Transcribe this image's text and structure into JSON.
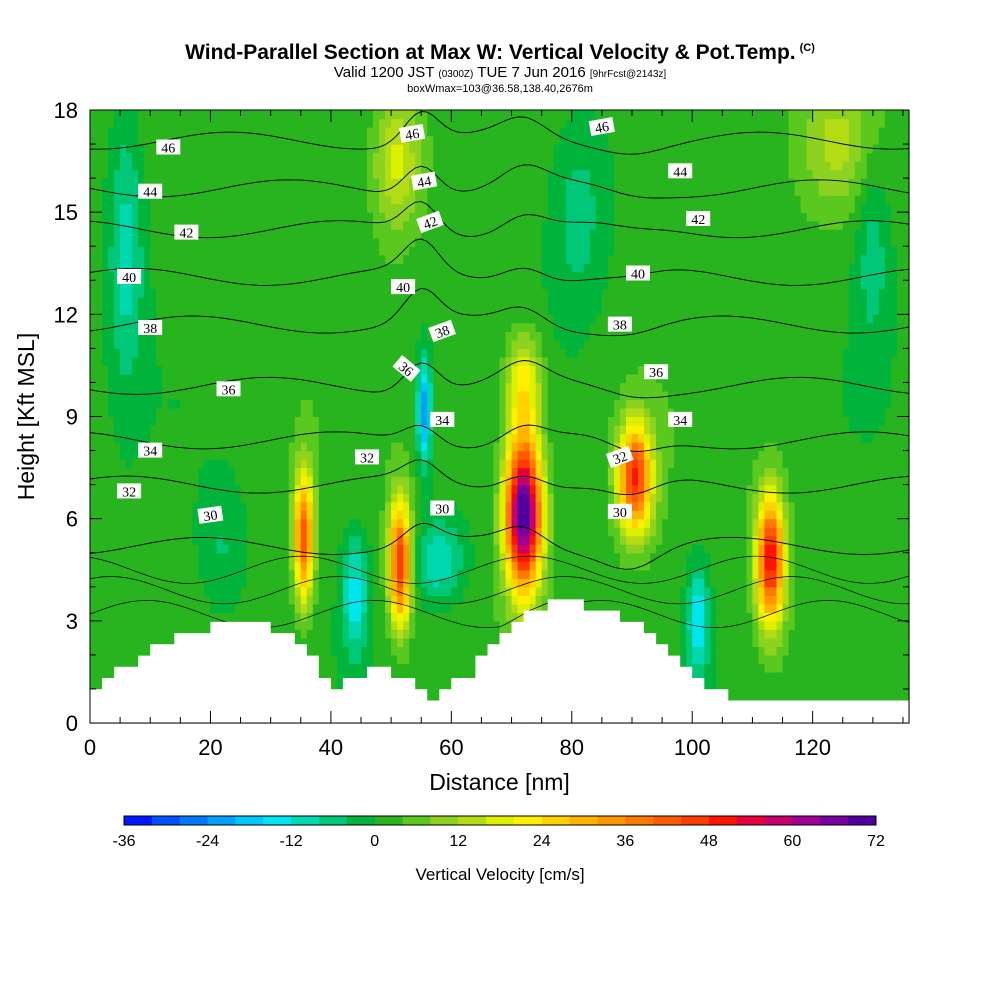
{
  "title_line1": "Wind-Parallel Section at Max W: Vertical Velocity & Pot.Temp.",
  "title_line1_tag": "(C)",
  "title_line2_a": "Valid 1200 JST",
  "title_line2_b": "(0300Z)",
  "title_line2_c": "TUE 7 Jun 2016",
  "title_line2_d": "[9hrFcst@2143z]",
  "title_line3": "boxWmax=103@36.58,138.40,2676m",
  "chart_data": {
    "type": "heatmap",
    "xlabel": "Distance [nm]",
    "ylabel": "Height [Kft MSL]",
    "xlim": [
      0,
      136
    ],
    "ylim": [
      0,
      18
    ],
    "x_ticks": [
      "0",
      "20",
      "40",
      "60",
      "80",
      "100",
      "120"
    ],
    "y_ticks": [
      "0",
      "3",
      "6",
      "9",
      "12",
      "15",
      "18"
    ],
    "colorbar": {
      "title": "Vertical Velocity [cm/s]",
      "ticks": [
        "-36",
        "-24",
        "-12",
        "0",
        "12",
        "24",
        "36",
        "48",
        "60",
        "72"
      ],
      "range": [
        -36,
        72
      ],
      "step": 4,
      "colors": [
        "#0018ff",
        "#0050ff",
        "#0078ff",
        "#00a0ff",
        "#00c8ff",
        "#00e6f0",
        "#00d8b0",
        "#00c878",
        "#00b43c",
        "#28b41e",
        "#5ac81e",
        "#8cd21e",
        "#b4dc14",
        "#dcf000",
        "#fff000",
        "#ffd200",
        "#ffb400",
        "#ff9600",
        "#ff7800",
        "#ff5a00",
        "#ff3c00",
        "#ff1400",
        "#e6003c",
        "#c8006e",
        "#a00096",
        "#7800a0",
        "#5000a0"
      ]
    },
    "updrafts": [
      {
        "x": 35.5,
        "y": 5.5,
        "peak": 40,
        "sx": 1.6,
        "sy": 1.9
      },
      {
        "x": 51.5,
        "y": 4.7,
        "peak": 46,
        "sx": 1.8,
        "sy": 1.8
      },
      {
        "x": 72,
        "y": 6.2,
        "peak": 72,
        "sx": 3.0,
        "sy": 2.2
      },
      {
        "x": 90.5,
        "y": 7.2,
        "peak": 46,
        "sx": 2.8,
        "sy": 1.6
      },
      {
        "x": 113,
        "y": 4.8,
        "peak": 50,
        "sx": 2.3,
        "sy": 1.9
      },
      {
        "x": 72,
        "y": 10.0,
        "peak": 20,
        "sx": 3.0,
        "sy": 1.4
      },
      {
        "x": 51,
        "y": 16.5,
        "peak": 16,
        "sx": 4.0,
        "sy": 2.0
      },
      {
        "x": 124,
        "y": 17.0,
        "peak": 10,
        "sx": 6.0,
        "sy": 2.0
      }
    ],
    "downdrafts": [
      {
        "x": 44,
        "y": 3.8,
        "peak": -16,
        "sx": 2.2,
        "sy": 1.8
      },
      {
        "x": 58,
        "y": 4.8,
        "peak": -14,
        "sx": 4.0,
        "sy": 1.2
      },
      {
        "x": 55.5,
        "y": 9.2,
        "peak": -24,
        "sx": 1.2,
        "sy": 1.6
      },
      {
        "x": 101,
        "y": 3.0,
        "peak": -18,
        "sx": 1.8,
        "sy": 1.6
      },
      {
        "x": 6,
        "y": 14.0,
        "peak": -12,
        "sx": 3.0,
        "sy": 4.0
      },
      {
        "x": 81,
        "y": 15.0,
        "peak": -8,
        "sx": 5.0,
        "sy": 3.0
      },
      {
        "x": 22,
        "y": 5.0,
        "peak": -6,
        "sx": 4.0,
        "sy": 2.0
      },
      {
        "x": 130,
        "y": 14,
        "peak": -8,
        "sx": 3.0,
        "sy": 3.0
      }
    ],
    "terrain": [
      {
        "x": 0,
        "h": 1.0
      },
      {
        "x": 4,
        "h": 1.6
      },
      {
        "x": 8,
        "h": 2.0
      },
      {
        "x": 11,
        "h": 2.3
      },
      {
        "x": 14,
        "h": 2.6
      },
      {
        "x": 20,
        "h": 2.9
      },
      {
        "x": 27,
        "h": 2.9
      },
      {
        "x": 33,
        "h": 2.6
      },
      {
        "x": 36,
        "h": 2.0
      },
      {
        "x": 39,
        "h": 1.0
      },
      {
        "x": 46,
        "h": 1.6
      },
      {
        "x": 52,
        "h": 1.4
      },
      {
        "x": 55,
        "h": 0.7
      },
      {
        "x": 62,
        "h": 1.4
      },
      {
        "x": 65,
        "h": 2.3
      },
      {
        "x": 69,
        "h": 2.9
      },
      {
        "x": 73,
        "h": 3.3
      },
      {
        "x": 77,
        "h": 3.6
      },
      {
        "x": 86,
        "h": 3.3
      },
      {
        "x": 92,
        "h": 2.6
      },
      {
        "x": 98,
        "h": 1.6
      },
      {
        "x": 103,
        "h": 1.0
      },
      {
        "x": 106,
        "h": 0.7
      },
      {
        "x": 136,
        "h": 0.7
      }
    ],
    "theta_contours": [
      {
        "value": "30",
        "base": 5.2
      },
      {
        "value": "32",
        "base": 7.0
      },
      {
        "value": "34",
        "base": 8.3
      },
      {
        "value": "36",
        "base": 9.9
      },
      {
        "value": "38",
        "base": 11.7
      },
      {
        "value": "40",
        "base": 13.1
      },
      {
        "value": "42",
        "base": 14.5
      },
      {
        "value": "44",
        "base": 15.7
      },
      {
        "value": "46",
        "base": 17.1
      }
    ],
    "contour_labels": [
      {
        "text": "46",
        "x": 13,
        "y": 16.9,
        "rot": 0
      },
      {
        "text": "44",
        "x": 10,
        "y": 15.6,
        "rot": 0
      },
      {
        "text": "42",
        "x": 16,
        "y": 14.4,
        "rot": 0
      },
      {
        "text": "40",
        "x": 6.5,
        "y": 13.1,
        "rot": 0
      },
      {
        "text": "38",
        "x": 10,
        "y": 11.6,
        "rot": 0
      },
      {
        "text": "36",
        "x": 23,
        "y": 9.8,
        "rot": 0
      },
      {
        "text": "34",
        "x": 10,
        "y": 8.0,
        "rot": 0
      },
      {
        "text": "32",
        "x": 6.5,
        "y": 6.8,
        "rot": 0
      },
      {
        "text": "30",
        "x": 20,
        "y": 6.1,
        "rot": -8
      },
      {
        "text": "32",
        "x": 46,
        "y": 7.8,
        "rot": 0
      },
      {
        "text": "30",
        "x": 58.5,
        "y": 6.3,
        "rot": 0
      },
      {
        "text": "34",
        "x": 58.5,
        "y": 8.9,
        "rot": 0
      },
      {
        "text": "36",
        "x": 52.5,
        "y": 10.4,
        "rot": 40
      },
      {
        "text": "38",
        "x": 58.5,
        "y": 11.5,
        "rot": -20
      },
      {
        "text": "40",
        "x": 52,
        "y": 12.8,
        "rot": 0
      },
      {
        "text": "42",
        "x": 56.5,
        "y": 14.7,
        "rot": -20
      },
      {
        "text": "44",
        "x": 55.5,
        "y": 15.9,
        "rot": -10
      },
      {
        "text": "46",
        "x": 53.5,
        "y": 17.3,
        "rot": -10
      },
      {
        "text": "46",
        "x": 85,
        "y": 17.5,
        "rot": -10
      },
      {
        "text": "44",
        "x": 98,
        "y": 16.2,
        "rot": 0
      },
      {
        "text": "42",
        "x": 101,
        "y": 14.8,
        "rot": 0
      },
      {
        "text": "40",
        "x": 91,
        "y": 13.2,
        "rot": 0
      },
      {
        "text": "38",
        "x": 88,
        "y": 11.7,
        "rot": 0
      },
      {
        "text": "36",
        "x": 94,
        "y": 10.3,
        "rot": 0
      },
      {
        "text": "34",
        "x": 98,
        "y": 8.9,
        "rot": 0
      },
      {
        "text": "32",
        "x": 88,
        "y": 7.8,
        "rot": -20
      },
      {
        "text": "30",
        "x": 88,
        "y": 6.2,
        "rot": 0
      }
    ],
    "grid": false,
    "legend": "bottom"
  }
}
